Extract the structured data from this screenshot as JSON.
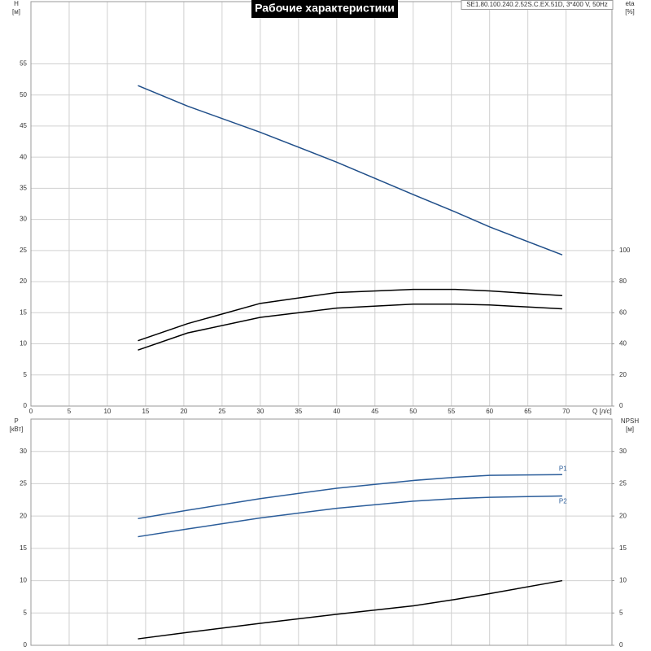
{
  "chart_data": [
    {
      "type": "line",
      "title": "Рабочие характеристики",
      "subtitle": "SE1.80.100.240.2.52S.C.EX.51D, 3*400 V, 50Hz",
      "xlabel": "Q [л/с]",
      "ylabel": "H",
      "yunit": "[м]",
      "y2label": "eta",
      "y2unit": "[%]",
      "x": [
        14,
        20.5,
        30,
        40,
        50,
        55.5,
        60,
        69.5
      ],
      "xlim": [
        0,
        76
      ],
      "xticks": [
        0,
        5,
        10,
        15,
        20,
        25,
        30,
        35,
        40,
        45,
        50,
        55,
        60,
        65,
        70
      ],
      "show_xtick_labels": true,
      "ylim": [
        0,
        65
      ],
      "yticks": [
        0,
        5,
        10,
        15,
        20,
        25,
        30,
        35,
        40,
        45,
        50,
        55
      ],
      "y2lim": [
        0,
        260
      ],
      "y2ticks": [
        0,
        20,
        40,
        60,
        80,
        100
      ],
      "grid": true,
      "series": [
        {
          "color": "#1f4e89",
          "values": [
            51.5,
            48.2,
            44,
            39.2,
            34,
            31.2,
            28.8,
            24.3
          ]
        },
        {
          "color": "#000000",
          "axis": "y2",
          "values": [
            42,
            53,
            66,
            73,
            75,
            75,
            74,
            71
          ]
        },
        {
          "color": "#000000",
          "axis": "y2",
          "values": [
            36,
            47,
            57,
            63,
            65.5,
            65.5,
            65,
            62.5
          ]
        }
      ]
    },
    {
      "type": "line",
      "ylabel": "P",
      "yunit": "[кВт]",
      "y2label": "NPSH",
      "y2unit": "[м]",
      "x": [
        14,
        20.5,
        30,
        40,
        50,
        55.5,
        60,
        69.5
      ],
      "xlim": [
        0,
        76
      ],
      "xticks": [
        0,
        5,
        10,
        15,
        20,
        25,
        30,
        35,
        40,
        45,
        50,
        55,
        60,
        65,
        70
      ],
      "show_xtick_labels": false,
      "ylim": [
        0,
        35
      ],
      "yticks": [
        0,
        5,
        10,
        15,
        20,
        25,
        30
      ],
      "y2lim": [
        0,
        35
      ],
      "y2ticks": [
        0,
        5,
        10,
        15,
        20,
        25,
        30
      ],
      "grid": true,
      "series": [
        {
          "name": "P1",
          "color": "#2b5d9a",
          "values": [
            19.6,
            20.9,
            22.7,
            24.3,
            25.5,
            26,
            26.3,
            26.4
          ]
        },
        {
          "name": "P2",
          "color": "#2b5d9a",
          "values": [
            16.8,
            18,
            19.7,
            21.2,
            22.3,
            22.7,
            22.9,
            23.1
          ]
        },
        {
          "color": "#000000",
          "axis": "y2",
          "values": [
            1,
            2,
            3.4,
            4.8,
            6.1,
            7.1,
            8,
            10
          ]
        }
      ]
    }
  ]
}
